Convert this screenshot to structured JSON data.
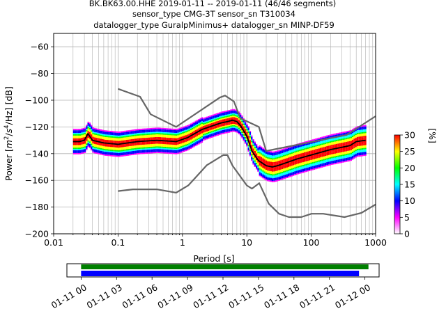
{
  "title_lines": [
    "BK.BK63.00.HHE   2019-01-11 -- 2019-01-11  (46/46 segments)",
    "sensor_type CMG-3T sensor_sn T310034",
    "datalogger_type GuralpMinimus+ datalogger_sn MINP-DF59"
  ],
  "chart_data": {
    "type": "heatmap",
    "xlabel": "Period [s]",
    "ylabel_parts": [
      "Power [",
      "m",
      "2",
      "/",
      "s",
      "4",
      "/Hz] [dB]"
    ],
    "x_scale": "log",
    "xlim": [
      0.01,
      1000
    ],
    "ylim": [
      -200,
      -50
    ],
    "x_ticks": [
      {
        "v": 0.01,
        "label": "0.01"
      },
      {
        "v": 0.1,
        "label": "0.1"
      },
      {
        "v": 1,
        "label": "1"
      },
      {
        "v": 10,
        "label": "10"
      },
      {
        "v": 100,
        "label": "100"
      },
      {
        "v": 1000,
        "label": "1000"
      }
    ],
    "y_ticks": [
      {
        "v": -60,
        "label": "−60"
      },
      {
        "v": -80,
        "label": "−80"
      },
      {
        "v": -100,
        "label": "−100"
      },
      {
        "v": -120,
        "label": "−120"
      },
      {
        "v": -140,
        "label": "−140"
      },
      {
        "v": -160,
        "label": "−160"
      },
      {
        "v": -180,
        "label": "−180"
      },
      {
        "v": -200,
        "label": "−200"
      }
    ],
    "grid": true,
    "colorbar": {
      "label": "[%]",
      "range": [
        0,
        30
      ],
      "ticks": [
        "0",
        "5",
        "10",
        "15",
        "20",
        "25",
        "30"
      ],
      "colors": [
        "#ffffff",
        "#ff00ff",
        "#0000ff",
        "#00ffff",
        "#00ff00",
        "#ffff00",
        "#ff0000"
      ]
    },
    "series": [
      {
        "role": "high noise model",
        "color": "#666666",
        "x": [
          0.1,
          0.22,
          0.32,
          0.8,
          3.8,
          4.6,
          6.3,
          7.9,
          15.4,
          20,
          354.8,
          1000
        ],
        "y": [
          -91.5,
          -97.4,
          -110.5,
          -120,
          -98,
          -96.5,
          -101,
          -113.5,
          -120,
          -138,
          -126,
          -112
        ]
      },
      {
        "role": "low noise model",
        "color": "#666666",
        "x": [
          0.1,
          0.17,
          0.4,
          0.8,
          1.24,
          2.4,
          4.3,
          5,
          6,
          10,
          12,
          15.6,
          21.9,
          31.6,
          45,
          70,
          101,
          154,
          328,
          600,
          1000
        ],
        "y": [
          -168,
          -166.7,
          -166.7,
          -169.2,
          -163.7,
          -148.6,
          -141.1,
          -141.1,
          -149,
          -163.8,
          -166.2,
          -162.1,
          -177.5,
          -185,
          -187.5,
          -187.5,
          -185,
          -185,
          -187.5,
          -184.4,
          -178
        ]
      },
      {
        "role": "mode",
        "color": "#000000",
        "x": [
          0.02,
          0.025,
          0.03,
          0.034,
          0.04,
          0.06,
          0.1,
          0.2,
          0.4,
          0.8,
          1.2,
          2,
          3,
          4,
          5,
          6,
          7,
          8,
          10,
          12,
          15,
          20,
          25,
          30,
          40,
          60,
          100,
          200,
          400,
          500,
          700
        ],
        "y": [
          -131,
          -131,
          -130,
          -125,
          -130,
          -132,
          -133,
          -131,
          -130,
          -131,
          -128,
          -122,
          -119,
          -117,
          -116,
          -115,
          -116,
          -119,
          -127,
          -138,
          -145,
          -149,
          -150,
          -149,
          -147,
          -144,
          -141,
          -137,
          -134,
          -131,
          -130
        ]
      }
    ],
    "timeline": {
      "tick_labels": [
        "01-11 00",
        "01-11 03",
        "01-11 06",
        "01-11 09",
        "01-11 12",
        "01-11 15",
        "01-11 18",
        "01-11 21",
        "01-12 00"
      ],
      "tick_hours": [
        0,
        3,
        6,
        9,
        12,
        15,
        18,
        21,
        24
      ],
      "range_hours": [
        -1.2,
        25.2
      ],
      "bars": [
        {
          "color": "#008000",
          "start_hour": 0,
          "end_hour": 24.3
        },
        {
          "color": "#0000ff",
          "start_hour": 0,
          "end_hour": 23.5
        }
      ]
    }
  }
}
